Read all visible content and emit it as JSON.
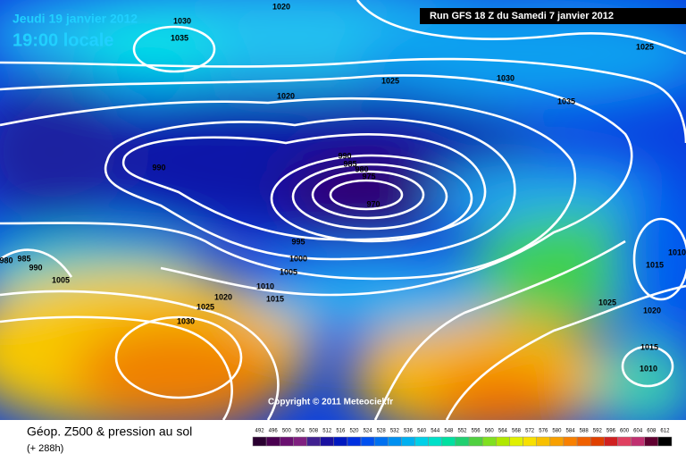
{
  "header": {
    "date": "Jeudi 19 janvier 2012",
    "time": "19:00 locale",
    "run": "Run GFS 18 Z du Samedi 7 janvier 2012"
  },
  "map": {
    "isobar_labels": [
      1020,
      1030,
      1035,
      1025,
      1030,
      1025,
      1020,
      1035,
      990,
      990,
      985,
      980,
      975,
      970,
      995,
      1000,
      1005,
      1010,
      1015,
      1020,
      1025,
      1030,
      980,
      985,
      990,
      1005,
      1010,
      1015,
      1025,
      1020,
      1015,
      1010
    ],
    "copyright": "Copyright © 2011 Meteociel.fr"
  },
  "footer": {
    "title": "Géop. Z500 & pression au sol",
    "lead": "(+ 288h)"
  },
  "legend": {
    "values": [
      492,
      496,
      500,
      504,
      508,
      512,
      516,
      520,
      524,
      528,
      532,
      536,
      540,
      544,
      548,
      552,
      556,
      560,
      564,
      568,
      572,
      576,
      580,
      584,
      588,
      592,
      596,
      600,
      604,
      608,
      612
    ],
    "colors": [
      "#2a0030",
      "#4a0050",
      "#6a1070",
      "#802080",
      "#402090",
      "#1a10a0",
      "#0018c0",
      "#0030e0",
      "#0050f0",
      "#0070f0",
      "#0090f0",
      "#00b0f0",
      "#00d0e8",
      "#00e0c8",
      "#00e0a0",
      "#20d070",
      "#50d040",
      "#80e020",
      "#b0e800",
      "#e0f000",
      "#f8e000",
      "#f8c000",
      "#f8a000",
      "#f88000",
      "#f06000",
      "#e04000",
      "#d02020",
      "#e04060",
      "#c03070",
      "#600030",
      "#000000"
    ]
  }
}
